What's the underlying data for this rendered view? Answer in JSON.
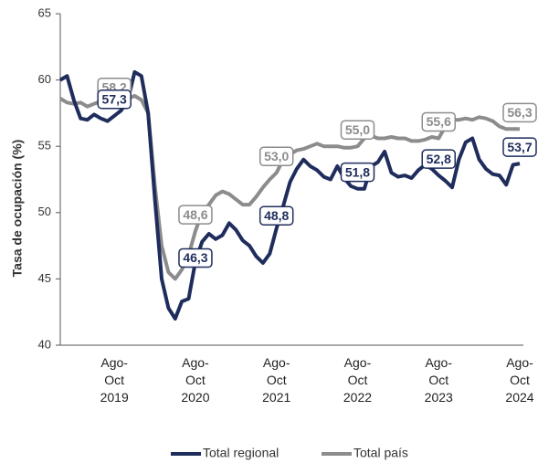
{
  "chart_data": {
    "type": "line",
    "y_label": "Tasa de ocupación (%)",
    "categories": [
      null,
      null,
      null,
      null,
      null,
      null,
      null,
      null,
      "Ago-\nOct\n2019",
      null,
      null,
      null,
      null,
      null,
      null,
      null,
      null,
      null,
      null,
      null,
      "Ago-\nOct\n2020",
      null,
      null,
      null,
      null,
      null,
      null,
      null,
      null,
      null,
      null,
      null,
      "Ago-\nOct\n2021",
      null,
      null,
      null,
      null,
      null,
      null,
      null,
      null,
      null,
      null,
      null,
      "Ago-\nOct\n2022",
      null,
      null,
      null,
      null,
      null,
      null,
      null,
      null,
      null,
      null,
      null,
      "Ago-\nOct\n2023",
      null,
      null,
      null,
      null,
      null,
      null,
      null,
      null,
      null,
      null,
      null,
      "Ago-\nOct\n2024"
    ],
    "series": [
      {
        "name": "Total regional",
        "color": "#1f2d5c",
        "values": [
          60.0,
          60.3,
          58.5,
          57.1,
          57.0,
          57.4,
          57.1,
          56.9,
          57.3,
          57.7,
          58.5,
          60.6,
          60.3,
          57.5,
          51.0,
          45.0,
          42.8,
          42.0,
          43.3,
          43.5,
          46.3,
          47.8,
          48.4,
          48.0,
          48.3,
          49.2,
          48.7,
          47.9,
          47.5,
          46.7,
          46.2,
          46.9,
          48.8,
          50.5,
          52.3,
          53.3,
          54.0,
          53.5,
          53.2,
          52.7,
          52.5,
          53.5,
          52.6,
          52.0,
          51.8,
          51.8,
          53.5,
          53.8,
          54.6,
          53.0,
          52.7,
          52.8,
          52.6,
          53.2,
          53.6,
          53.3,
          52.8,
          52.4,
          51.9,
          54.0,
          55.3,
          55.6,
          54.0,
          53.3,
          52.9,
          52.8,
          52.1,
          53.6,
          53.7
        ],
        "value_labels": [
          null,
          null,
          null,
          null,
          null,
          null,
          null,
          null,
          "57,3",
          null,
          null,
          null,
          null,
          null,
          null,
          null,
          null,
          null,
          null,
          null,
          "46,3",
          null,
          null,
          null,
          null,
          null,
          null,
          null,
          null,
          null,
          null,
          null,
          "48,8",
          null,
          null,
          null,
          null,
          null,
          null,
          null,
          null,
          null,
          null,
          null,
          "51,8",
          null,
          null,
          null,
          null,
          null,
          null,
          null,
          null,
          null,
          null,
          null,
          "52,8",
          null,
          null,
          null,
          null,
          null,
          null,
          null,
          null,
          null,
          null,
          null,
          "53,7"
        ]
      },
      {
        "name": "Total país",
        "color": "#8c8c8c",
        "values": [
          58.6,
          58.3,
          58.2,
          58.3,
          58.0,
          58.2,
          58.4,
          58.3,
          58.2,
          58.4,
          58.6,
          58.8,
          58.5,
          57.5,
          52.0,
          47.5,
          45.5,
          45.0,
          45.7,
          46.8,
          48.6,
          50.0,
          50.6,
          51.3,
          51.6,
          51.4,
          51.0,
          50.6,
          50.6,
          51.2,
          51.9,
          52.5,
          53.0,
          54.0,
          54.4,
          54.7,
          54.8,
          55.0,
          55.2,
          55.0,
          55.0,
          55.0,
          54.9,
          54.9,
          55.0,
          55.6,
          55.8,
          55.6,
          55.6,
          55.7,
          55.6,
          55.6,
          55.4,
          55.4,
          55.5,
          55.7,
          55.6,
          56.5,
          57.0,
          57.0,
          57.1,
          57.0,
          57.2,
          57.1,
          56.9,
          56.5,
          56.3,
          56.3,
          56.3
        ],
        "value_labels": [
          null,
          null,
          null,
          null,
          null,
          null,
          null,
          null,
          "58,2",
          null,
          null,
          null,
          null,
          null,
          null,
          null,
          null,
          null,
          null,
          null,
          "48,6",
          null,
          null,
          null,
          null,
          null,
          null,
          null,
          null,
          null,
          null,
          null,
          "53,0",
          null,
          null,
          null,
          null,
          null,
          null,
          null,
          null,
          null,
          null,
          null,
          "55,0",
          null,
          null,
          null,
          null,
          null,
          null,
          null,
          null,
          null,
          null,
          null,
          "55,6",
          null,
          null,
          null,
          null,
          null,
          null,
          null,
          null,
          null,
          null,
          null,
          "56,3"
        ]
      }
    ],
    "ylim": [
      40,
      65
    ],
    "yticks": [
      40,
      45,
      50,
      55,
      60,
      65
    ],
    "grid": false,
    "legend": "bottom"
  }
}
